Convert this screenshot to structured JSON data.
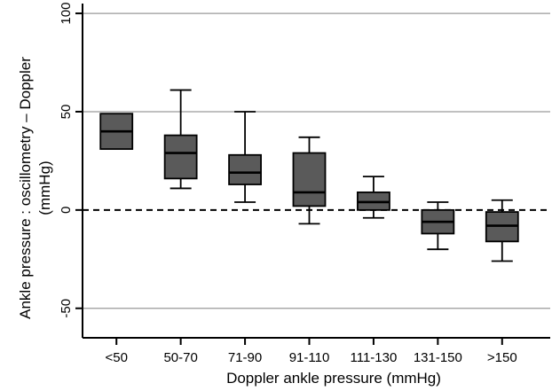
{
  "chart_data": {
    "type": "box",
    "xlabel": "Doppler ankle pressure (mmHg)",
    "ylabel_lines": [
      "Ankle pressure : oscillometry – Doppler",
      "(mmHg)"
    ],
    "ylim": [
      -65,
      105
    ],
    "yticks": [
      100,
      50,
      0,
      -50
    ],
    "ytick_labels": [
      "100",
      "50",
      "0",
      "-50"
    ],
    "grid": "horizontal",
    "reference_line": {
      "y": 0,
      "style": "dashed"
    },
    "box_color": "#5a5a5a",
    "categories": [
      "<50",
      "50-70",
      "71-90",
      "91-110",
      "111-130",
      "131-150",
      ">150"
    ],
    "boxes": [
      {
        "category": "<50",
        "q1": 31,
        "median": 40,
        "q3": 49,
        "whisker_low": null,
        "whisker_high": null
      },
      {
        "category": "50-70",
        "q1": 16,
        "median": 29,
        "q3": 38,
        "whisker_low": 11,
        "whisker_high": 61
      },
      {
        "category": "71-90",
        "q1": 13,
        "median": 19,
        "q3": 28,
        "whisker_low": 4,
        "whisker_high": 50
      },
      {
        "category": "91-110",
        "q1": 2,
        "median": 9,
        "q3": 29,
        "whisker_low": -7,
        "whisker_high": 37
      },
      {
        "category": "111-130",
        "q1": 0,
        "median": 4,
        "q3": 9,
        "whisker_low": -4,
        "whisker_high": 17
      },
      {
        "category": "131-150",
        "q1": -12,
        "median": -6,
        "q3": 0,
        "whisker_low": -20,
        "whisker_high": 4
      },
      {
        "category": ">150",
        "q1": -16,
        "median": -8,
        "q3": -1,
        "whisker_low": -26,
        "whisker_high": 5
      }
    ]
  }
}
